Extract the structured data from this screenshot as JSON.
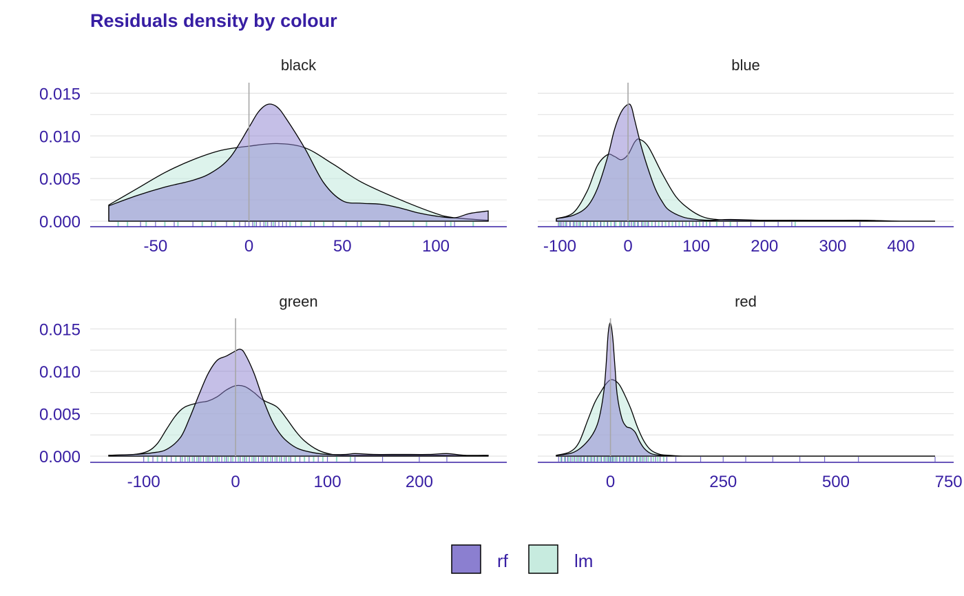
{
  "colors": {
    "title": "#371ea3",
    "axis": "#371ea3",
    "rf": "#8b7fd0",
    "lm": "#c7ebdf",
    "grid": "#e3e3e3",
    "zero_line": "#a6a6a6",
    "outline": "#000000"
  },
  "chart_data": {
    "type": "area",
    "title": "Residuals density by colour",
    "xlabel": "",
    "ylabel": "",
    "grid": true,
    "legend": {
      "position": "bottom",
      "entries": [
        {
          "key": "rf",
          "label": "rf"
        },
        {
          "key": "lm",
          "label": "lm"
        }
      ]
    },
    "panels": [
      {
        "name": "black",
        "xlim": [
          -75,
          128
        ],
        "ylim": [
          0,
          0.016
        ],
        "x_ticks": [
          -50,
          0,
          50,
          100
        ],
        "y_ticks": [
          "0.000",
          "0.005",
          "0.010",
          "0.015"
        ],
        "series": [
          {
            "name": "lm",
            "x": [
              -75,
              -60,
              -45,
              -30,
              -15,
              0,
              15,
              30,
              45,
              60,
              80,
              100,
              110,
              128
            ],
            "y": [
              0.0019,
              0.0038,
              0.0057,
              0.0072,
              0.0083,
              0.0088,
              0.0091,
              0.0086,
              0.0067,
              0.0046,
              0.0026,
              0.0009,
              0.0004,
              0.0001
            ]
          },
          {
            "name": "rf",
            "x": [
              -75,
              -60,
              -45,
              -30,
              -20,
              -10,
              0,
              5,
              10,
              15,
              20,
              30,
              40,
              50,
              60,
              70,
              80,
              90,
              100,
              110,
              118,
              128
            ],
            "y": [
              0.0018,
              0.003,
              0.004,
              0.0048,
              0.0057,
              0.0075,
              0.011,
              0.0128,
              0.0137,
              0.0134,
              0.012,
              0.0085,
              0.0045,
              0.0024,
              0.0021,
              0.002,
              0.0016,
              0.001,
              0.0006,
              0.0004,
              0.0009,
              0.0012
            ]
          }
        ],
        "rug": {
          "rf": [
            -58,
            -50,
            -40,
            -30,
            -20,
            -12,
            -5,
            -2,
            0,
            2,
            4,
            6,
            8,
            10,
            12,
            14,
            16,
            18,
            20,
            25,
            35,
            45,
            58,
            75,
            105,
            110
          ],
          "lm": [
            -70,
            -65,
            -55,
            -45,
            -38,
            -25,
            -18,
            -8,
            3,
            9,
            13,
            22,
            28,
            33,
            40,
            52,
            60,
            70,
            88,
            95,
            108,
            120
          ]
        }
      },
      {
        "name": "blue",
        "xlim": [
          -105,
          450
        ],
        "ylim": [
          0,
          0.016
        ],
        "x_ticks": [
          -100,
          0,
          100,
          200,
          300,
          400
        ],
        "y_ticks": [
          "0.000",
          "0.005",
          "0.010",
          "0.015"
        ],
        "series": [
          {
            "name": "lm",
            "x": [
              -105,
              -80,
              -60,
              -45,
              -30,
              -20,
              -10,
              0,
              10,
              17,
              30,
              50,
              70,
              90,
              110,
              130,
              160,
              200,
              250,
              300,
              350,
              400,
              450
            ],
            "y": [
              0.0003,
              0.001,
              0.0035,
              0.0065,
              0.0078,
              0.0076,
              0.0072,
              0.0078,
              0.0093,
              0.0096,
              0.0087,
              0.0056,
              0.0029,
              0.0014,
              0.0005,
              0.0002,
              0.0001,
              0.0001,
              0.0001,
              0.0001,
              0.0001,
              0.0,
              0.0
            ]
          },
          {
            "name": "rf",
            "x": [
              -105,
              -80,
              -60,
              -45,
              -30,
              -20,
              -10,
              0,
              5,
              10,
              20,
              30,
              40,
              50,
              60,
              80,
              100,
              120,
              150,
              200,
              250,
              300,
              350,
              400,
              450
            ],
            "y": [
              0.0003,
              0.0007,
              0.0017,
              0.0038,
              0.0075,
              0.0107,
              0.0128,
              0.0137,
              0.0134,
              0.0118,
              0.0086,
              0.006,
              0.0038,
              0.0023,
              0.0013,
              0.0005,
              0.0002,
              0.0001,
              0.0002,
              0.0001,
              0.0001,
              0.0,
              0.0,
              0.0,
              0.0
            ]
          }
        ],
        "rug": {
          "rf": [
            -102,
            -98,
            -95,
            -90,
            -85,
            -80,
            -75,
            -70,
            -60,
            -50,
            -40,
            -30,
            -20,
            -10,
            -5,
            0,
            5,
            10,
            15,
            20,
            25,
            30,
            40,
            50,
            60,
            70,
            80,
            90,
            100,
            110,
            120,
            140,
            160,
            180,
            200,
            220,
            240,
            340
          ],
          "lm": [
            -100,
            -92,
            -85,
            -78,
            -72,
            -66,
            -60,
            -55,
            -50,
            -45,
            -40,
            -35,
            -30,
            -25,
            -18,
            -12,
            -6,
            2,
            8,
            14,
            22,
            28,
            35,
            45,
            55,
            65,
            75,
            85,
            95,
            105,
            115,
            130,
            150,
            245
          ]
        }
      },
      {
        "name": "green",
        "xlim": [
          -138,
          275
        ],
        "ylim": [
          0,
          0.016
        ],
        "x_ticks": [
          -100,
          0,
          100,
          200
        ],
        "y_ticks": [
          "0.000",
          "0.005",
          "0.010",
          "0.015"
        ],
        "series": [
          {
            "name": "lm",
            "x": [
              -138,
              -110,
              -95,
              -85,
              -75,
              -65,
              -55,
              -40,
              -30,
              -20,
              -10,
              0,
              10,
              20,
              30,
              45,
              55,
              65,
              75,
              90,
              105,
              120,
              140,
              170,
              200,
              230,
              275
            ],
            "y": [
              0.0001,
              0.0002,
              0.0006,
              0.0015,
              0.0032,
              0.0048,
              0.0058,
              0.0063,
              0.0065,
              0.007,
              0.0078,
              0.0083,
              0.0082,
              0.0075,
              0.0066,
              0.0058,
              0.0045,
              0.003,
              0.0018,
              0.0007,
              0.0002,
              0.0001,
              0.0001,
              0.0001,
              0.0001,
              0.0001,
              0.0
            ]
          },
          {
            "name": "rf",
            "x": [
              -138,
              -110,
              -90,
              -75,
              -60,
              -50,
              -40,
              -30,
              -20,
              -10,
              0,
              5,
              10,
              20,
              30,
              40,
              50,
              60,
              70,
              85,
              100,
              120,
              130,
              150,
              180,
              210,
              230,
              250,
              275
            ],
            "y": [
              0.0001,
              0.0002,
              0.0004,
              0.0008,
              0.0022,
              0.0045,
              0.0072,
              0.0097,
              0.0113,
              0.0118,
              0.0124,
              0.0126,
              0.0121,
              0.0098,
              0.0067,
              0.0041,
              0.0024,
              0.0014,
              0.0008,
              0.0004,
              0.0002,
              0.0002,
              0.0003,
              0.0002,
              0.0002,
              0.0002,
              0.0003,
              0.0001,
              0.0001
            ]
          }
        ],
        "rug": {
          "rf": [
            -100,
            -90,
            -80,
            -70,
            -60,
            -55,
            -50,
            -45,
            -40,
            -35,
            -30,
            -25,
            -20,
            -15,
            -10,
            -5,
            0,
            5,
            10,
            15,
            20,
            25,
            30,
            35,
            40,
            45,
            50,
            55,
            60,
            70,
            80,
            90,
            100,
            130,
            160,
            200,
            230
          ],
          "lm": [
            -95,
            -85,
            -75,
            -65,
            -58,
            -52,
            -47,
            -42,
            -38,
            -32,
            -28,
            -22,
            -18,
            -12,
            -8,
            -3,
            3,
            8,
            12,
            18,
            22,
            28,
            33,
            38,
            43,
            48,
            53,
            58,
            65,
            75,
            85,
            95,
            110,
            125
          ]
        }
      },
      {
        "name": "red",
        "xlim": [
          -120,
          720
        ],
        "ylim": [
          0,
          0.016
        ],
        "x_ticks": [
          0,
          250,
          500,
          750
        ],
        "y_ticks": [
          "0.000",
          "0.005",
          "0.010",
          "0.015"
        ],
        "series": [
          {
            "name": "lm",
            "x": [
              -120,
              -90,
              -70,
              -50,
              -35,
              -20,
              -10,
              0,
              10,
              20,
              30,
              45,
              60,
              75,
              90,
              110,
              130,
              160,
              200,
              300,
              400,
              500,
              600,
              720
            ],
            "y": [
              0.0001,
              0.0005,
              0.0016,
              0.0043,
              0.0063,
              0.0077,
              0.0085,
              0.009,
              0.0089,
              0.0084,
              0.0074,
              0.0056,
              0.0034,
              0.0017,
              0.0007,
              0.0002,
              0.0001,
              0.0,
              0.0,
              0.0,
              0.0,
              0.0,
              0.0,
              0.0
            ]
          },
          {
            "name": "rf",
            "x": [
              -120,
              -90,
              -70,
              -50,
              -35,
              -25,
              -15,
              -10,
              -5,
              0,
              5,
              10,
              15,
              25,
              35,
              45,
              55,
              65,
              75,
              90,
              110,
              130,
              160,
              200,
              300,
              400,
              500,
              600,
              720
            ],
            "y": [
              0.0001,
              0.0003,
              0.0008,
              0.0018,
              0.003,
              0.0045,
              0.0075,
              0.0105,
              0.0145,
              0.0157,
              0.014,
              0.0105,
              0.0072,
              0.0045,
              0.0035,
              0.0033,
              0.0028,
              0.0017,
              0.0009,
              0.0003,
              0.0001,
              0.0,
              0.0,
              0.0,
              0.0,
              0.0,
              0.0,
              0.0,
              0.0
            ]
          }
        ],
        "rug": {
          "rf": [
            -115,
            -108,
            -100,
            -95,
            -88,
            -80,
            -72,
            -65,
            -58,
            -50,
            -42,
            -35,
            -28,
            -20,
            -12,
            -5,
            0,
            5,
            12,
            20,
            28,
            35,
            42,
            50,
            58,
            65,
            72,
            80,
            90,
            100,
            110,
            125,
            145,
            200,
            250,
            300,
            360,
            420,
            475,
            550,
            720
          ],
          "lm": [
            -110,
            -102,
            -92,
            -84,
            -76,
            -68,
            -60,
            -52,
            -45,
            -38,
            -30,
            -23,
            -15,
            -8,
            -2,
            3,
            8,
            15,
            23,
            30,
            38,
            45,
            52,
            60,
            68,
            76,
            84,
            95,
            105,
            118
          ]
        }
      }
    ]
  }
}
